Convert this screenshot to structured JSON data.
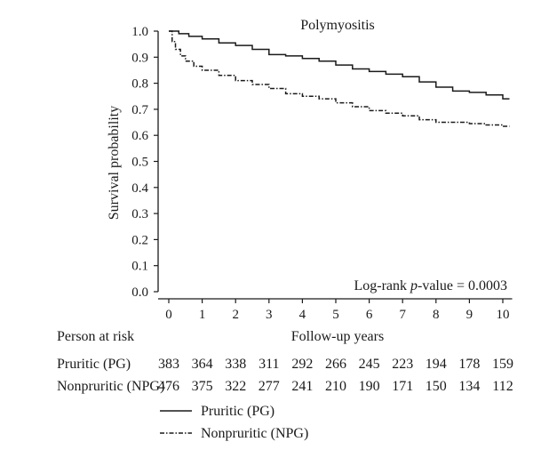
{
  "chart_data": {
    "type": "line",
    "title": "Polymyositis",
    "xlabel": "Follow-up years",
    "ylabel": "Survival probability",
    "xlim": [
      0,
      10.2
    ],
    "ylim": [
      0,
      1.0
    ],
    "x_ticks": [
      "0",
      "1",
      "2",
      "3",
      "4",
      "5",
      "6",
      "7",
      "8",
      "9",
      "10"
    ],
    "y_ticks": [
      "0.0",
      "0.1",
      "0.2",
      "0.3",
      "0.4",
      "0.5",
      "0.6",
      "0.7",
      "0.8",
      "0.9",
      "1.0"
    ],
    "grid": false,
    "annotation": {
      "prefix": "Log-rank ",
      "italic": "p",
      "suffix": "-value = 0.0003"
    },
    "series": [
      {
        "name": "Pruritic (PG)",
        "style": "solid",
        "color": "#1a1a1a",
        "x": [
          0,
          0.3,
          0.6,
          1,
          1.5,
          2,
          2.5,
          3,
          3.5,
          4,
          4.5,
          5,
          5.5,
          6,
          6.5,
          7,
          7.5,
          8,
          8.5,
          9,
          9.5,
          10,
          10.2
        ],
        "y": [
          1.0,
          0.99,
          0.98,
          0.97,
          0.955,
          0.945,
          0.93,
          0.91,
          0.905,
          0.895,
          0.885,
          0.87,
          0.855,
          0.845,
          0.835,
          0.825,
          0.805,
          0.785,
          0.77,
          0.765,
          0.755,
          0.74,
          0.74
        ]
      },
      {
        "name": "Nonpruritic (NPG)",
        "style": "dashdot",
        "color": "#1a1a1a",
        "x": [
          0,
          0.1,
          0.2,
          0.35,
          0.5,
          0.75,
          1,
          1.5,
          2,
          2.5,
          3,
          3.5,
          4,
          4.5,
          5,
          5.5,
          6,
          6.5,
          7,
          7.5,
          8,
          8.5,
          9,
          9.5,
          10,
          10.2
        ],
        "y": [
          1.0,
          0.96,
          0.93,
          0.905,
          0.885,
          0.865,
          0.85,
          0.83,
          0.81,
          0.795,
          0.78,
          0.76,
          0.75,
          0.74,
          0.725,
          0.71,
          0.695,
          0.685,
          0.675,
          0.66,
          0.65,
          0.65,
          0.645,
          0.64,
          0.635,
          0.635
        ]
      }
    ],
    "legend": [
      {
        "label": "Pruritic (PG)",
        "style": "solid"
      },
      {
        "label": "Nonpruritic (NPG)",
        "style": "dashdot"
      }
    ],
    "risk_table": {
      "header": "Person at risk",
      "rows": [
        {
          "label": "Pruritic (PG)",
          "values": [
            "383",
            "364",
            "338",
            "311",
            "292",
            "266",
            "245",
            "223",
            "194",
            "178",
            "159"
          ]
        },
        {
          "label": "Nonpruritic (NPG)",
          "values": [
            "476",
            "375",
            "322",
            "277",
            "241",
            "210",
            "190",
            "171",
            "150",
            "134",
            "112"
          ]
        }
      ]
    }
  }
}
